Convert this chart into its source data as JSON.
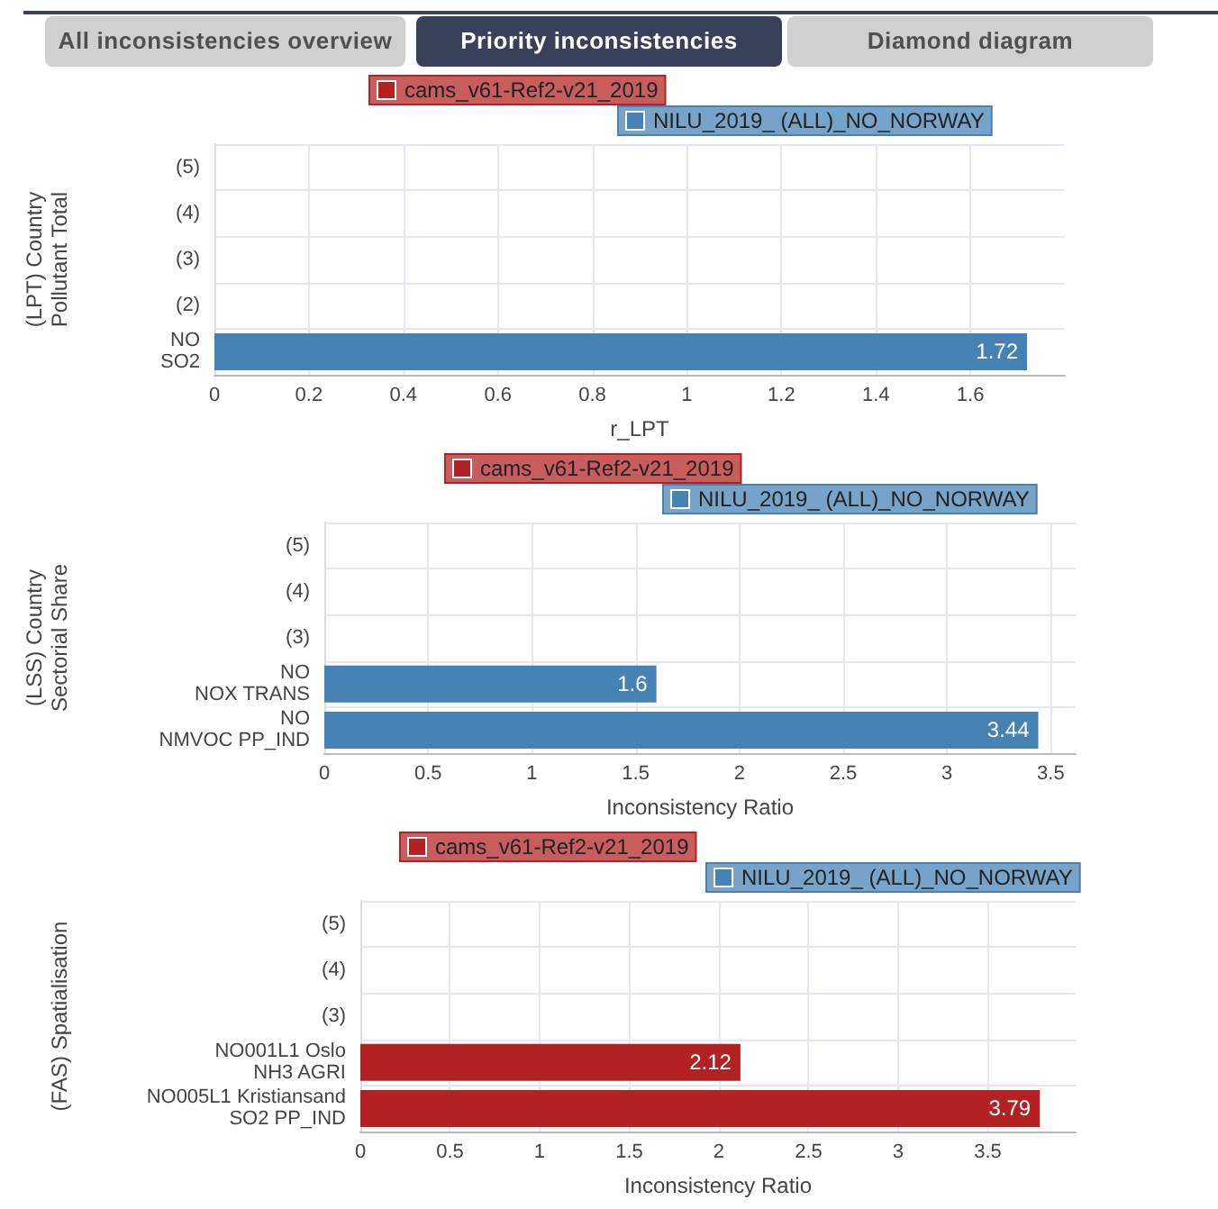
{
  "chart_data": [
    {
      "type": "other",
      "annotations": [
        "All inconsistencies overview",
        "Priority inconsistencies",
        "Diamond diagram"
      ]
    },
    {
      "type": "bar",
      "orientation": "horizontal",
      "ylabel": "(LPT) Country\nPollutant Total",
      "xlabel": "r_LPT",
      "categories": [
        "(5)",
        "(4)",
        "(3)",
        "(2)",
        "NO\nSO2"
      ],
      "series": [
        {
          "name": "cams_v61-Ref2-v21_2019",
          "color": "#b22222",
          "values": [
            null,
            null,
            null,
            null,
            null
          ]
        },
        {
          "name": "NILU_2019_ (ALL)_NO_NORWAY",
          "color": "#4682b4",
          "values": [
            null,
            null,
            null,
            null,
            1.72
          ]
        }
      ],
      "xlim": [
        0,
        1.8
      ],
      "xticks": [
        0,
        0.2,
        0.4,
        0.6,
        0.8,
        1,
        1.2,
        1.4,
        1.6
      ],
      "grid": true,
      "legend": "top",
      "data_labels": true
    },
    {
      "type": "bar",
      "orientation": "horizontal",
      "ylabel": "(LSS) Country\nSectorial Share",
      "xlabel": "Inconsistency Ratio",
      "categories": [
        "(5)",
        "(4)",
        "(3)",
        "NO\nNOX TRANS",
        "NO\nNMVOC PP_IND"
      ],
      "series": [
        {
          "name": "cams_v61-Ref2-v21_2019",
          "color": "#b22222",
          "values": [
            null,
            null,
            null,
            null,
            null
          ]
        },
        {
          "name": "NILU_2019_ (ALL)_NO_NORWAY",
          "color": "#4682b4",
          "values": [
            null,
            null,
            null,
            1.6,
            3.44
          ]
        }
      ],
      "xlim": [
        0,
        3.62
      ],
      "xticks": [
        0,
        0.5,
        1,
        1.5,
        2,
        2.5,
        3,
        3.5
      ],
      "grid": true,
      "legend": "top",
      "data_labels": true
    },
    {
      "type": "bar",
      "orientation": "horizontal",
      "ylabel": "(FAS) Spatialisation",
      "xlabel": "Inconsistency Ratio",
      "categories": [
        "(5)",
        "(4)",
        "(3)",
        "NO001L1 Oslo\nNH3 AGRI",
        "NO005L1 Kristiansand\nSO2 PP_IND"
      ],
      "series": [
        {
          "name": "cams_v61-Ref2-v21_2019",
          "color": "#b22222",
          "values": [
            null,
            null,
            null,
            2.12,
            3.79
          ]
        },
        {
          "name": "NILU_2019_ (ALL)_NO_NORWAY",
          "color": "#4682b4",
          "values": [
            null,
            null,
            null,
            null,
            null
          ]
        }
      ],
      "xlim": [
        0,
        3.99
      ],
      "xticks": [
        0,
        0.5,
        1,
        1.5,
        2,
        2.5,
        3,
        3.5
      ],
      "grid": true,
      "legend": "top",
      "data_labels": true
    }
  ]
}
